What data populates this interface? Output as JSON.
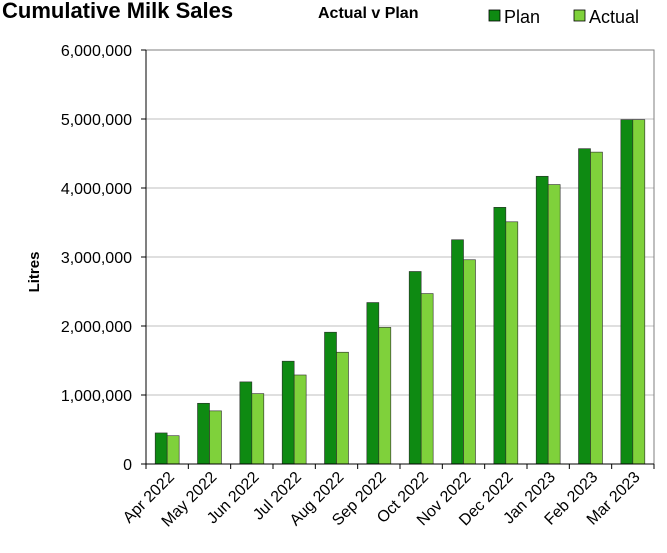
{
  "chart_data": {
    "type": "bar",
    "title": "Cumulative Milk Sales",
    "subtitle": "Actual v Plan",
    "xlabel": "",
    "ylabel": "Litres",
    "ylim": [
      0,
      6000000
    ],
    "y_ticks": [
      "0",
      "1,000,000",
      "2,000,000",
      "3,000,000",
      "4,000,000",
      "5,000,000",
      "6,000,000"
    ],
    "y_tick_values": [
      0,
      1000000,
      2000000,
      3000000,
      4000000,
      5000000,
      6000000
    ],
    "grid": true,
    "legend_position": "top-right",
    "categories": [
      "Apr 2022",
      "May 2022",
      "Jun 2022",
      "Jul 2022",
      "Aug 2022",
      "Sep 2022",
      "Oct 2022",
      "Nov 2022",
      "Dec 2022",
      "Jan 2023",
      "Feb 2023",
      "Mar 2023"
    ],
    "series": [
      {
        "name": "Plan",
        "color": "#0e8a12",
        "values": [
          450000,
          880000,
          1190000,
          1490000,
          1910000,
          2340000,
          2790000,
          3250000,
          3720000,
          4170000,
          4570000,
          4990000
        ]
      },
      {
        "name": "Actual",
        "color": "#7fd13b",
        "values": [
          410000,
          770000,
          1020000,
          1290000,
          1620000,
          1980000,
          2470000,
          2960000,
          3510000,
          4050000,
          4520000,
          4990000
        ]
      }
    ]
  }
}
